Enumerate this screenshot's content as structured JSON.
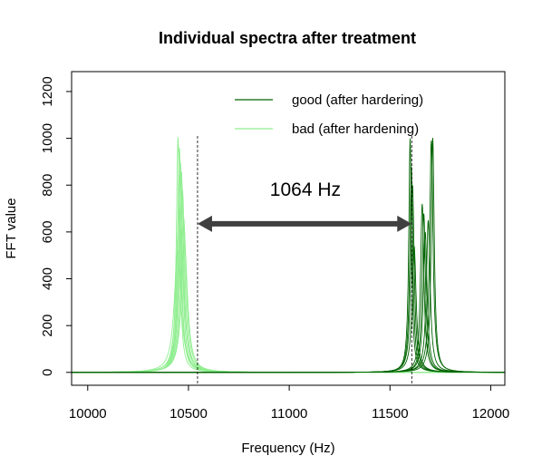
{
  "chart_data": {
    "type": "line",
    "title": "Individual spectra after treatment",
    "xlabel": "Frequency (Hz)",
    "ylabel": "FFT value",
    "xlim": [
      9920,
      12070
    ],
    "ylim": [
      -55,
      1285
    ],
    "xticks": [
      10000,
      10500,
      11000,
      11500,
      12000
    ],
    "yticks": [
      0,
      200,
      400,
      600,
      800,
      1000,
      1200
    ],
    "grid": false,
    "legend_position": "top-right",
    "legend": [
      {
        "label": "good (after hardering)",
        "color": "#006400"
      },
      {
        "label": "bad (after hardening)",
        "color": "#90EE90"
      }
    ],
    "series": [
      {
        "name": "bad (after hardening)",
        "color": "#90EE90",
        "peaks": [
          {
            "f0": 10448,
            "peak": 1005,
            "width": 10
          },
          {
            "f0": 10455,
            "peak": 960,
            "width": 11
          },
          {
            "f0": 10460,
            "peak": 900,
            "width": 12
          },
          {
            "f0": 10465,
            "peak": 860,
            "width": 13
          },
          {
            "f0": 10470,
            "peak": 780,
            "width": 14
          },
          {
            "f0": 10452,
            "peak": 700,
            "width": 15
          },
          {
            "f0": 10476,
            "peak": 660,
            "width": 16
          },
          {
            "f0": 10462,
            "peak": 610,
            "width": 18
          },
          {
            "f0": 10480,
            "peak": 560,
            "width": 18
          },
          {
            "f0": 10446,
            "peak": 520,
            "width": 20
          }
        ]
      },
      {
        "name": "good (after hardering)",
        "color": "#006400",
        "peaks": [
          {
            "f0": 11600,
            "peak": 1000,
            "width": 8
          },
          {
            "f0": 11606,
            "peak": 880,
            "width": 9
          },
          {
            "f0": 11612,
            "peak": 800,
            "width": 10
          },
          {
            "f0": 11660,
            "peak": 720,
            "width": 10
          },
          {
            "f0": 11668,
            "peak": 680,
            "width": 10
          },
          {
            "f0": 11675,
            "peak": 600,
            "width": 11
          },
          {
            "f0": 11690,
            "peak": 650,
            "width": 11
          },
          {
            "f0": 11705,
            "peak": 990,
            "width": 10
          },
          {
            "f0": 11712,
            "peak": 1005,
            "width": 9
          },
          {
            "f0": 11620,
            "peak": 540,
            "width": 12
          }
        ]
      }
    ],
    "annotations": {
      "vlines": [
        10545,
        11608
      ],
      "arrow": {
        "x1": 10545,
        "x2": 11608,
        "y": 635,
        "color": "#404040"
      },
      "label": {
        "text": "1064 Hz",
        "x": 11080,
        "y": 755
      }
    }
  }
}
